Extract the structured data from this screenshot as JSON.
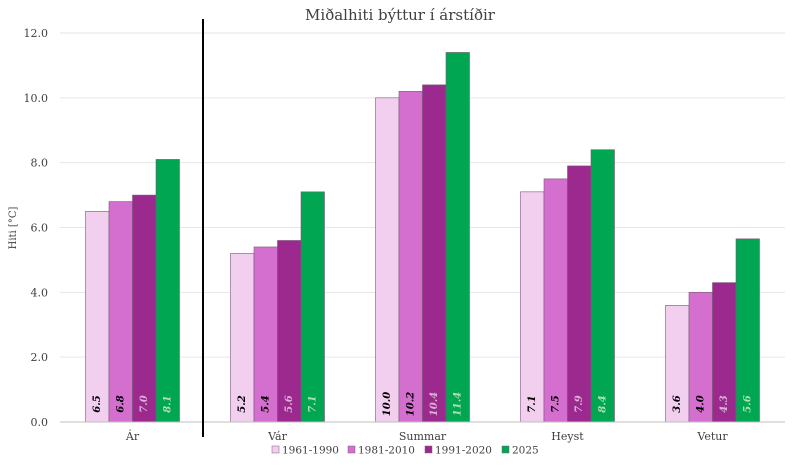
{
  "chart_data": {
    "type": "bar",
    "title": "Miðalhiti býttur í árstíðir",
    "xlabel": "",
    "ylabel": "Hiti [°C]",
    "ylim": [
      0,
      12
    ],
    "yticks": [
      "0.0",
      "2.0",
      "4.0",
      "6.0",
      "8.0",
      "10.0",
      "12.0"
    ],
    "grid": true,
    "legend_position": "bottom",
    "categories": [
      "Ár",
      "Vár",
      "Summar",
      "Heyst",
      "Vetur"
    ],
    "series": [
      {
        "name": "1961-1990",
        "color": "#f2cfee",
        "label_color": "#000000",
        "values": [
          6.5,
          5.2,
          10.0,
          7.1,
          3.6
        ],
        "labels": [
          "6.5",
          "5.2",
          "10.0",
          "7.1",
          "3.6"
        ]
      },
      {
        "name": "1981-2010",
        "color": "#d46fcf",
        "label_color": "#000000",
        "values": [
          6.8,
          5.4,
          10.2,
          7.5,
          4.0
        ],
        "labels": [
          "6.8",
          "5.4",
          "10.2",
          "7.5",
          "4.0"
        ]
      },
      {
        "name": "1991-2020",
        "color": "#9c2a8e",
        "label_color": "#d9b3d6",
        "values": [
          7.0,
          5.6,
          10.4,
          7.9,
          4.3
        ],
        "labels": [
          "7.0",
          "5.6",
          "10.4",
          "7.9",
          "4.3"
        ]
      },
      {
        "name": "2025",
        "color": "#00a651",
        "label_color": "#b0e0b0",
        "values": [
          8.1,
          7.1,
          11.4,
          8.4,
          5.65
        ],
        "labels": [
          "8.1",
          "7.1",
          "11.4",
          "8.4",
          "5.6"
        ]
      }
    ],
    "separator_after_category": "Ár"
  }
}
